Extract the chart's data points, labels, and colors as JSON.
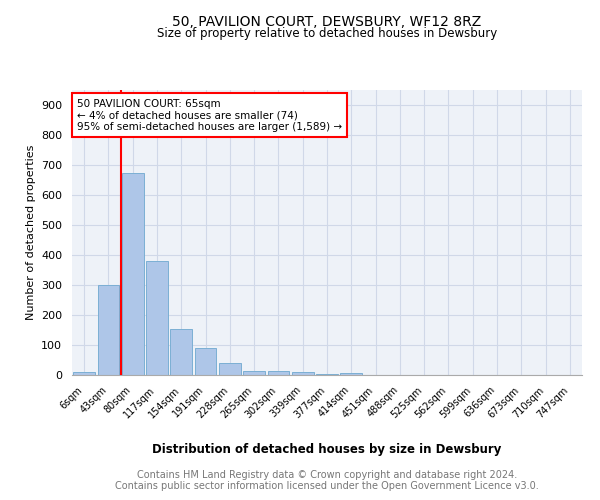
{
  "title": "50, PAVILION COURT, DEWSBURY, WF12 8RZ",
  "subtitle": "Size of property relative to detached houses in Dewsbury",
  "xlabel": "Distribution of detached houses by size in Dewsbury",
  "ylabel": "Number of detached properties",
  "categories": [
    "6sqm",
    "43sqm",
    "80sqm",
    "117sqm",
    "154sqm",
    "191sqm",
    "228sqm",
    "265sqm",
    "302sqm",
    "339sqm",
    "377sqm",
    "414sqm",
    "451sqm",
    "488sqm",
    "525sqm",
    "562sqm",
    "599sqm",
    "636sqm",
    "673sqm",
    "710sqm",
    "747sqm"
  ],
  "values": [
    10,
    300,
    675,
    380,
    152,
    90,
    40,
    15,
    15,
    10,
    5,
    7,
    0,
    0,
    0,
    0,
    0,
    0,
    0,
    0,
    0
  ],
  "bar_color": "#aec6e8",
  "bar_edge_color": "#7bafd4",
  "annotation_title": "50 PAVILION COURT: 65sqm",
  "annotation_line1": "← 4% of detached houses are smaller (74)",
  "annotation_line2": "95% of semi-detached houses are larger (1,589) →",
  "ylim": [
    0,
    950
  ],
  "yticks": [
    0,
    100,
    200,
    300,
    400,
    500,
    600,
    700,
    800,
    900
  ],
  "grid_color": "#d0d8e8",
  "bg_color": "#eef2f8",
  "footer_line1": "Contains HM Land Registry data © Crown copyright and database right 2024.",
  "footer_line2": "Contains public sector information licensed under the Open Government Licence v3.0."
}
